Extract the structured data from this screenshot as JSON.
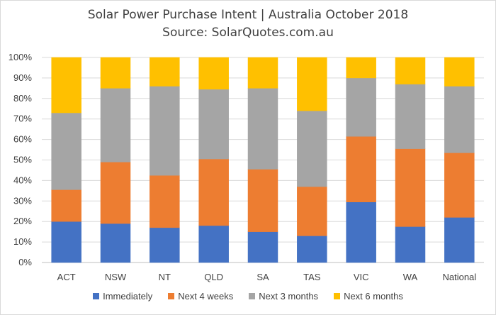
{
  "chart_data": {
    "type": "bar",
    "stacked": true,
    "title": "Solar Power Purchase Intent | Australia October 2018",
    "subtitle": "Source: SolarQuotes.com.au",
    "categories": [
      "ACT",
      "NSW",
      "NT",
      "QLD",
      "SA",
      "TAS",
      "VIC",
      "WA",
      "National"
    ],
    "ylim": [
      0,
      100
    ],
    "yticks": [
      "0%",
      "10%",
      "20%",
      "30%",
      "40%",
      "50%",
      "60%",
      "70%",
      "80%",
      "90%",
      "100%"
    ],
    "grid": true,
    "legend_position": "bottom",
    "series": [
      {
        "name": "Immediately",
        "color": "#4472C4",
        "values": [
          20,
          19,
          17,
          18,
          15,
          13,
          29.5,
          17.5,
          22
        ]
      },
      {
        "name": "Next 4 weeks",
        "color": "#ED7D31",
        "values": [
          15.5,
          30,
          25.5,
          32.5,
          30.5,
          24,
          32,
          38,
          31.5
        ]
      },
      {
        "name": "Next 3 months",
        "color": "#A5A5A5",
        "values": [
          37.5,
          36,
          43.5,
          34,
          39.5,
          37,
          28.5,
          31.5,
          32.5
        ]
      },
      {
        "name": "Next 6 months",
        "color": "#FFC000",
        "values": [
          27,
          15,
          14,
          15.5,
          15,
          26,
          10,
          13,
          14
        ]
      }
    ]
  }
}
